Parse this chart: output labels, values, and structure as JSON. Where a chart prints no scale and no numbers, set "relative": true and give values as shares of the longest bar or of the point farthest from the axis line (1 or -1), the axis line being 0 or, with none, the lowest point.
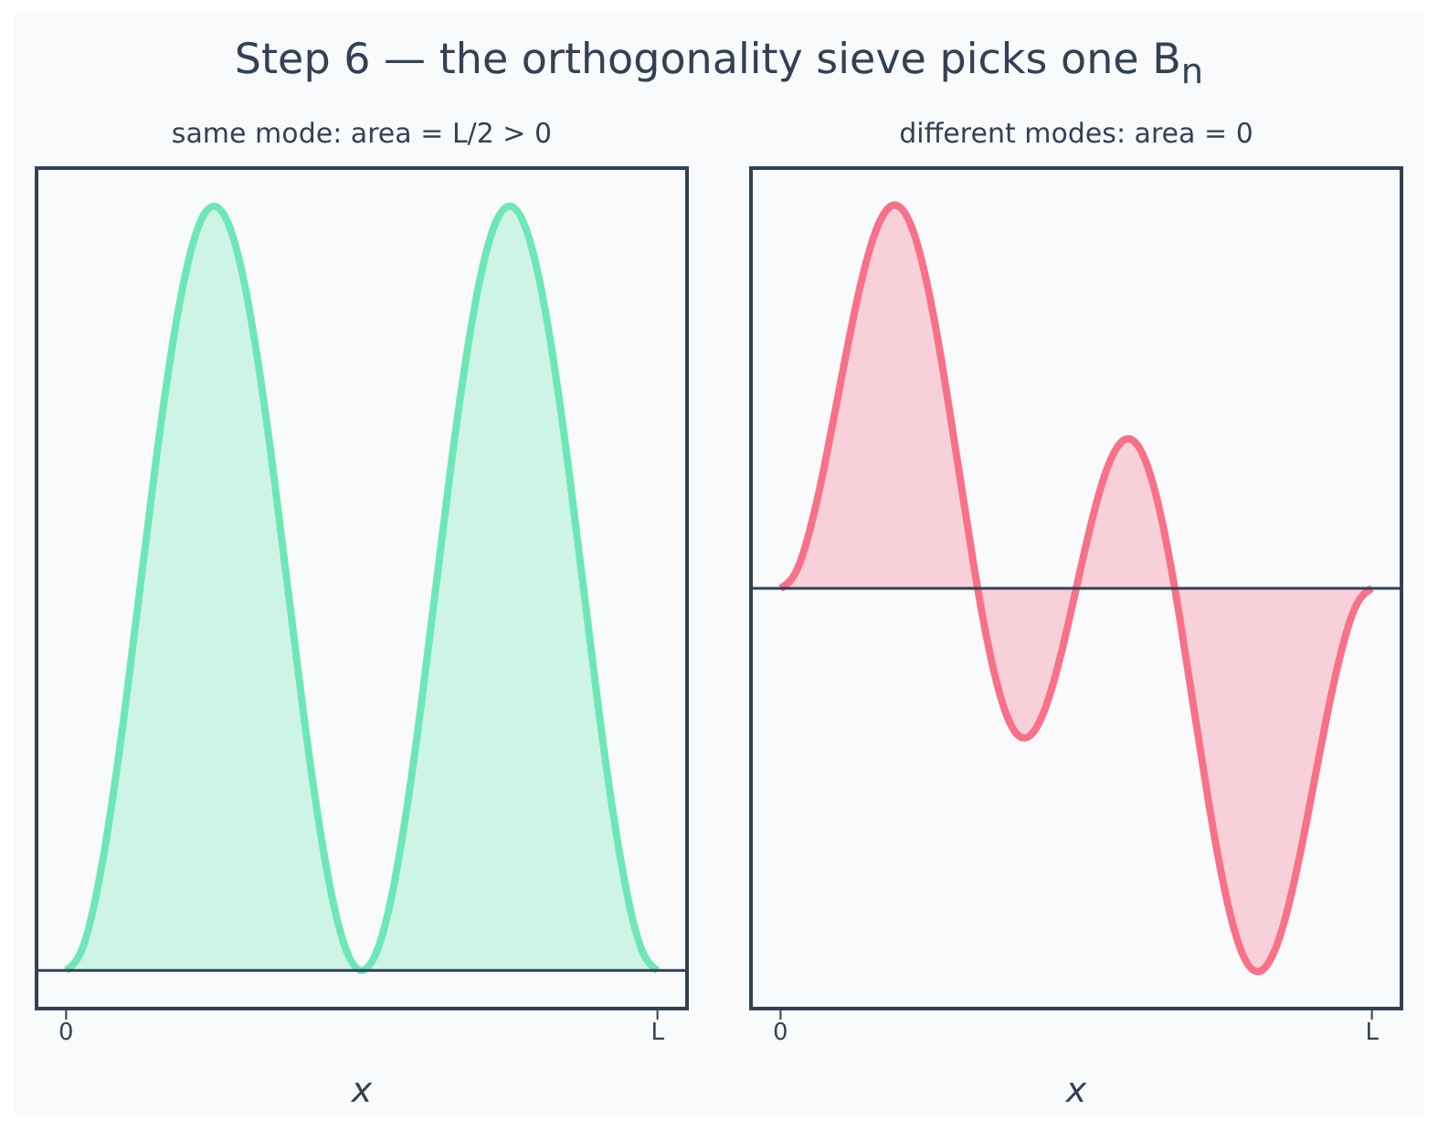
{
  "chart_data": [
    {
      "type": "area",
      "title": "Step 6 — the orthogonality sieve picks one B$_{n}$",
      "subtitle": "same mode: area = L/2 > 0",
      "xlabel": "x",
      "relative": true,
      "grid": false,
      "legend": false,
      "categories": [
        "0",
        null,
        null,
        null,
        null,
        null,
        null,
        null,
        null,
        null,
        null,
        null,
        null,
        null,
        null,
        null,
        null,
        null,
        null,
        null,
        null,
        null,
        null,
        null,
        null,
        null,
        null,
        null,
        null,
        null,
        null,
        null,
        null,
        null,
        null,
        null,
        null,
        null,
        null,
        null,
        "L"
      ],
      "series": [
        {
          "color": "#6ee7b7",
          "values": [
            0,
            0.024,
            0.095,
            0.206,
            0.345,
            0.5,
            0.655,
            0.794,
            0.905,
            0.976,
            1,
            0.976,
            0.905,
            0.794,
            0.655,
            0.5,
            0.345,
            0.206,
            0.095,
            0.024,
            0,
            0.024,
            0.095,
            0.206,
            0.345,
            0.5,
            0.655,
            0.794,
            0.905,
            0.976,
            1,
            0.976,
            0.905,
            0.794,
            0.655,
            0.5,
            0.345,
            0.206,
            0.095,
            0.024,
            0
          ]
        }
      ]
    },
    {
      "type": "area",
      "subtitle": "different modes: area = 0",
      "xlabel": "x",
      "relative": true,
      "grid": false,
      "legend": false,
      "categories": [
        "0",
        null,
        null,
        null,
        null,
        null,
        null,
        null,
        null,
        null,
        null,
        null,
        null,
        null,
        null,
        null,
        null,
        null,
        null,
        null,
        null,
        null,
        null,
        null,
        null,
        null,
        null,
        null,
        null,
        null,
        null,
        null,
        null,
        null,
        null,
        null,
        null,
        null,
        null,
        null,
        "L"
      ],
      "series": [
        {
          "color": "#f87189",
          "values": [
            0,
            0.04,
            0.155,
            0.326,
            0.526,
            0.722,
            0.883,
            0.981,
            1,
            0.932,
            0.781,
            0.57,
            0.325,
            0.077,
            -0.14,
            -0.299,
            -0.382,
            -0.381,
            -0.304,
            -0.168,
            0,
            0.168,
            0.304,
            0.381,
            0.382,
            0.299,
            0.14,
            -0.077,
            -0.325,
            -0.57,
            -0.781,
            -0.932,
            -1,
            -0.981,
            -0.883,
            -0.722,
            -0.526,
            -0.326,
            -0.155,
            -0.04,
            0
          ]
        }
      ]
    }
  ]
}
